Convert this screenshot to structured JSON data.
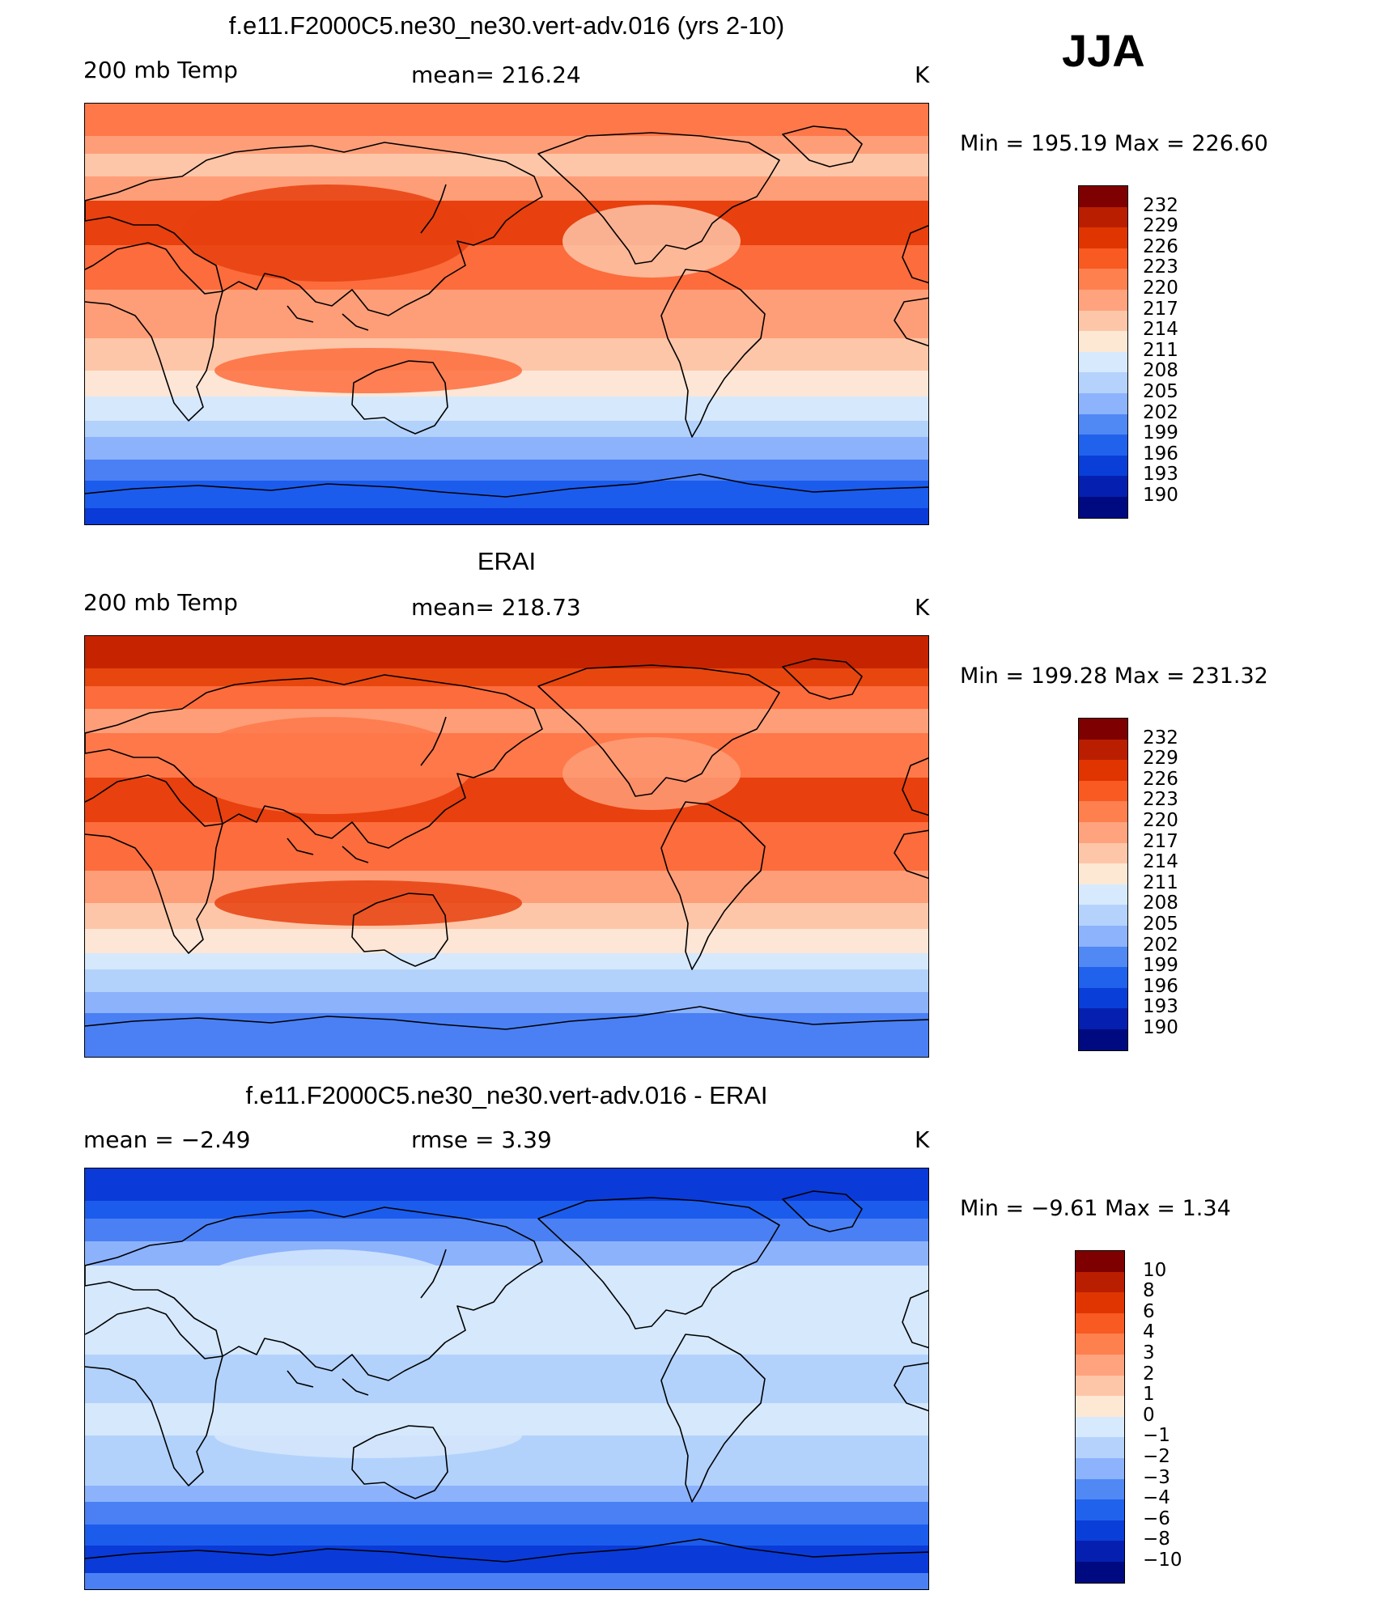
{
  "season": "JJA",
  "panels": [
    {
      "id": "model",
      "title": "f.e11.F2000C5.ne30_ne30.vert-adv.016 (yrs 2-10)",
      "left_label": "200 mb Temp",
      "center_label": "mean=  216.24",
      "right_label": "K",
      "minmax": "Min  =  195.19  Max  =  226.60",
      "colors": [
        "#fe784a",
        "#fe9e78",
        "#fdc6a8",
        "#fe9e78",
        "#e8400e",
        "#fd6c3c",
        "#fe9e78",
        "#fdc6a8",
        "#fde6d6",
        "#d6e8fc",
        "#b2d2fc",
        "#8cb2fc",
        "#4a80f4",
        "#1c5cec",
        "#0a3ad8"
      ],
      "legend": {
        "labels": [
          "232",
          "229",
          "226",
          "223",
          "220",
          "217",
          "214",
          "211",
          "208",
          "205",
          "202",
          "199",
          "196",
          "193",
          "190"
        ],
        "colors": [
          "#7e0000",
          "#b91e00",
          "#e03500",
          "#f85a22",
          "#fe804f",
          "#fea37e",
          "#fec6a8",
          "#fde8d4",
          "#d7e9fd",
          "#b4d2fc",
          "#8cb3fc",
          "#5088f4",
          "#2062ec",
          "#0a3ed8",
          "#0520b0",
          "#000a80"
        ]
      }
    },
    {
      "id": "obs",
      "title": "ERAI",
      "left_label": "200 mb Temp",
      "center_label": "mean=  218.73",
      "right_label": "K",
      "minmax": "Min  =  199.28  Max  =  231.32",
      "colors": [
        "#c62400",
        "#e8460f",
        "#fd6c3c",
        "#fe9e78",
        "#fe784a",
        "#e8400e",
        "#fd6c3c",
        "#fe9e78",
        "#fdc6a8",
        "#fde6d6",
        "#d6e8fc",
        "#b2d2fc",
        "#8cb2fc",
        "#4a80f4",
        "#4a80f4"
      ],
      "legend": {
        "labels": [
          "232",
          "229",
          "226",
          "223",
          "220",
          "217",
          "214",
          "211",
          "208",
          "205",
          "202",
          "199",
          "196",
          "193",
          "190"
        ],
        "colors": [
          "#7e0000",
          "#b91e00",
          "#e03500",
          "#f85a22",
          "#fe804f",
          "#fea37e",
          "#fec6a8",
          "#fde8d4",
          "#d7e9fd",
          "#b4d2fc",
          "#8cb3fc",
          "#5088f4",
          "#2062ec",
          "#0a3ed8",
          "#0520b0",
          "#000a80"
        ]
      }
    },
    {
      "id": "diff",
      "title": "f.e11.F2000C5.ne30_ne30.vert-adv.016 - ERAI",
      "left_label": "mean  =     −2.49",
      "center_label": "rmse  =      3.39",
      "right_label": "K",
      "minmax": "Min  =     −9.61  Max  =       1.34",
      "colors": [
        "#0a3ad8",
        "#1c5cec",
        "#4a80f4",
        "#8cb2fc",
        "#d6e8fc",
        "#d6e8fc",
        "#b2d2fc",
        "#d6e8fc",
        "#b2d2fc",
        "#b2d2fc",
        "#8cb2fc",
        "#4a80f4",
        "#1c5cec",
        "#0a3ad8",
        "#4a80f4"
      ],
      "legend": {
        "labels": [
          "10",
          "8",
          "6",
          "4",
          "3",
          "2",
          "1",
          "0",
          "−1",
          "−2",
          "−3",
          "−4",
          "−6",
          "−8",
          "−10"
        ],
        "colors": [
          "#7e0000",
          "#b91e00",
          "#e03500",
          "#f85a22",
          "#fe804f",
          "#fea37e",
          "#fec6a8",
          "#fde8d4",
          "#d7e9fd",
          "#b4d2fc",
          "#8cb3fc",
          "#5088f4",
          "#2062ec",
          "#0a3ed8",
          "#0520b0",
          "#000a80"
        ]
      }
    }
  ]
}
